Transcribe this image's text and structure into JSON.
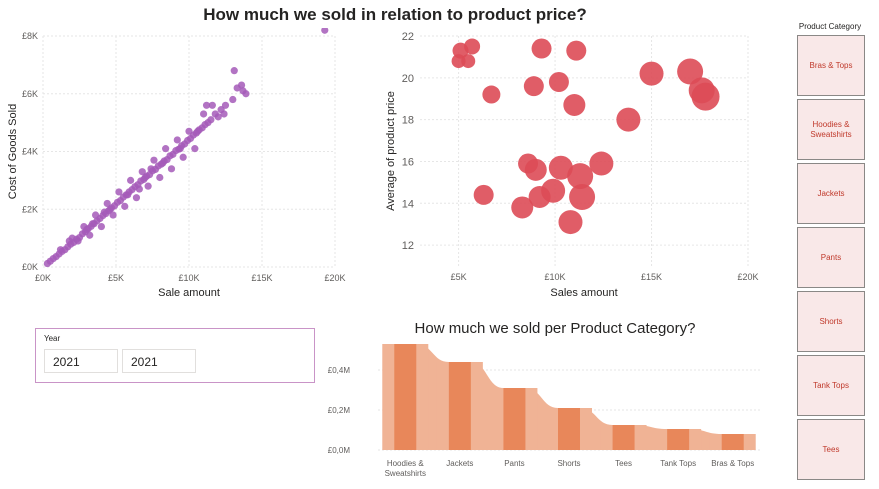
{
  "main_title": "How much we sold in relation to product price?",
  "ribbon_title": "How much we sold per Product Category?",
  "colors": {
    "scatter": "#a55ab8",
    "bubble": "#dd4b57",
    "ribbon_bar": "#e8875a",
    "ribbon_band": "#f0b395",
    "slicer_border": "#c994c7",
    "cat_text": "#c0392b",
    "cat_bg": "#f9e8e8"
  },
  "year_slicer": {
    "label": "Year",
    "from": "2021",
    "to": "2021"
  },
  "category_slicer": {
    "header": "Product Category",
    "items": [
      "Bras & Tops",
      "Hoodies & Sweatshirts",
      "Jackets",
      "Pants",
      "Shorts",
      "Tank Tops",
      "Tees"
    ]
  },
  "chart_data": [
    {
      "type": "scatter",
      "title": "",
      "xlabel": "Sale amount",
      "ylabel": "Cost of Goods Sold",
      "xlim": [
        0,
        20000
      ],
      "ylim": [
        0,
        8000
      ],
      "x_ticks": [
        "£0K",
        "£5K",
        "£10K",
        "£15K",
        "£20K"
      ],
      "y_ticks": [
        "£0K",
        "£2K",
        "£4K",
        "£6K",
        "£8K"
      ],
      "grid": true,
      "note": "approximately 300 points clustered along cost ≈ 0.44 × sale amount; listed points are a representative sample",
      "points": [
        [
          300,
          120
        ],
        [
          500,
          200
        ],
        [
          700,
          290
        ],
        [
          900,
          360
        ],
        [
          1100,
          450
        ],
        [
          1300,
          540
        ],
        [
          1500,
          600
        ],
        [
          1700,
          700
        ],
        [
          1900,
          790
        ],
        [
          2100,
          850
        ],
        [
          2300,
          960
        ],
        [
          2500,
          1020
        ],
        [
          2700,
          1150
        ],
        [
          2900,
          1220
        ],
        [
          3100,
          1330
        ],
        [
          3300,
          1410
        ],
        [
          3500,
          1500
        ],
        [
          3700,
          1600
        ],
        [
          3900,
          1680
        ],
        [
          4100,
          1780
        ],
        [
          4300,
          1850
        ],
        [
          4500,
          1950
        ],
        [
          4700,
          2050
        ],
        [
          4900,
          2120
        ],
        [
          5100,
          2240
        ],
        [
          5300,
          2300
        ],
        [
          5500,
          2420
        ],
        [
          5700,
          2500
        ],
        [
          5900,
          2600
        ],
        [
          6100,
          2680
        ],
        [
          6300,
          2780
        ],
        [
          6500,
          2850
        ],
        [
          6700,
          2980
        ],
        [
          6900,
          3030
        ],
        [
          7100,
          3150
        ],
        [
          7300,
          3200
        ],
        [
          7500,
          3330
        ],
        [
          7700,
          3380
        ],
        [
          7900,
          3500
        ],
        [
          8100,
          3560
        ],
        [
          8300,
          3670
        ],
        [
          8500,
          3720
        ],
        [
          8700,
          3850
        ],
        [
          8900,
          3900
        ],
        [
          9100,
          4030
        ],
        [
          9300,
          4080
        ],
        [
          9500,
          4200
        ],
        [
          9700,
          4260
        ],
        [
          9900,
          4380
        ],
        [
          10100,
          4450
        ],
        [
          10300,
          4570
        ],
        [
          10500,
          4640
        ],
        [
          10700,
          4750
        ],
        [
          10900,
          4820
        ],
        [
          11100,
          4930
        ],
        [
          11300,
          5000
        ],
        [
          11500,
          5100
        ],
        [
          11800,
          5300
        ],
        [
          12200,
          5450
        ],
        [
          12500,
          5600
        ],
        [
          13000,
          5800
        ],
        [
          13300,
          6200
        ],
        [
          13600,
          6300
        ],
        [
          13700,
          6100
        ],
        [
          13900,
          6000
        ],
        [
          13100,
          6800
        ],
        [
          19300,
          8200
        ],
        [
          1200,
          600
        ],
        [
          1800,
          900
        ],
        [
          2400,
          900
        ],
        [
          2800,
          1400
        ],
        [
          3200,
          1100
        ],
        [
          3600,
          1800
        ],
        [
          4000,
          1400
        ],
        [
          4400,
          2200
        ],
        [
          4800,
          1800
        ],
        [
          5200,
          2600
        ],
        [
          5600,
          2100
        ],
        [
          6000,
          3000
        ],
        [
          6400,
          2400
        ],
        [
          6800,
          3300
        ],
        [
          7200,
          2800
        ],
        [
          7600,
          3700
        ],
        [
          8000,
          3100
        ],
        [
          8400,
          4100
        ],
        [
          8800,
          3400
        ],
        [
          9200,
          4400
        ],
        [
          9600,
          3800
        ],
        [
          10000,
          4700
        ],
        [
          10400,
          4100
        ],
        [
          11000,
          5300
        ],
        [
          11600,
          5600
        ],
        [
          12000,
          5200
        ],
        [
          2000,
          1000
        ],
        [
          3400,
          1500
        ],
        [
          4600,
          2000
        ],
        [
          5800,
          2500
        ],
        [
          7000,
          3100
        ],
        [
          8200,
          3600
        ],
        [
          9400,
          4100
        ],
        [
          10600,
          4700
        ],
        [
          11200,
          5600
        ],
        [
          12400,
          5300
        ],
        [
          6600,
          2700
        ],
        [
          7400,
          3400
        ],
        [
          3000,
          1300
        ],
        [
          4200,
          1900
        ]
      ]
    },
    {
      "type": "bubble",
      "title": "",
      "xlabel": "Sales amount",
      "ylabel": "Average of product price",
      "xlim": [
        3000,
        20000
      ],
      "ylim": [
        11,
        22
      ],
      "x_ticks": [
        "£5K",
        "£10K",
        "£15K",
        "£20K"
      ],
      "y_ticks": [
        "12",
        "14",
        "16",
        "18",
        "20",
        "22"
      ],
      "grid": true,
      "points": [
        {
          "x": 5000,
          "y": 20.8,
          "r": 7
        },
        {
          "x": 5100,
          "y": 21.3,
          "r": 8
        },
        {
          "x": 5500,
          "y": 20.8,
          "r": 7
        },
        {
          "x": 5700,
          "y": 21.5,
          "r": 8
        },
        {
          "x": 6700,
          "y": 19.2,
          "r": 9
        },
        {
          "x": 9300,
          "y": 21.4,
          "r": 10
        },
        {
          "x": 8900,
          "y": 19.6,
          "r": 10
        },
        {
          "x": 10200,
          "y": 19.8,
          "r": 10
        },
        {
          "x": 11100,
          "y": 21.3,
          "r": 10
        },
        {
          "x": 11000,
          "y": 18.7,
          "r": 11
        },
        {
          "x": 13800,
          "y": 18.0,
          "r": 12
        },
        {
          "x": 15000,
          "y": 20.2,
          "r": 12
        },
        {
          "x": 17000,
          "y": 20.3,
          "r": 13
        },
        {
          "x": 17600,
          "y": 19.4,
          "r": 13
        },
        {
          "x": 17800,
          "y": 19.1,
          "r": 14
        },
        {
          "x": 6300,
          "y": 14.4,
          "r": 10
        },
        {
          "x": 8600,
          "y": 15.9,
          "r": 10
        },
        {
          "x": 9000,
          "y": 15.6,
          "r": 11
        },
        {
          "x": 8300,
          "y": 13.8,
          "r": 11
        },
        {
          "x": 9200,
          "y": 14.3,
          "r": 11
        },
        {
          "x": 9900,
          "y": 14.6,
          "r": 12
        },
        {
          "x": 10300,
          "y": 15.7,
          "r": 12
        },
        {
          "x": 10800,
          "y": 13.1,
          "r": 12
        },
        {
          "x": 11300,
          "y": 15.3,
          "r": 13
        },
        {
          "x": 11400,
          "y": 14.3,
          "r": 13
        },
        {
          "x": 12400,
          "y": 15.9,
          "r": 12
        }
      ]
    },
    {
      "type": "ribbon",
      "title": "How much we sold per Product Category?",
      "xlabel": "",
      "ylabel": "",
      "ylim": [
        0,
        520000
      ],
      "y_ticks": [
        "£0,0M",
        "£0,2M",
        "£0,4M"
      ],
      "categories": [
        "Hoodies & Sweatshirts",
        "Jackets",
        "Pants",
        "Shorts",
        "Tees",
        "Tank Tops",
        "Bras & Tops"
      ],
      "values": [
        530000,
        440000,
        310000,
        210000,
        125000,
        105000,
        80000
      ]
    }
  ]
}
